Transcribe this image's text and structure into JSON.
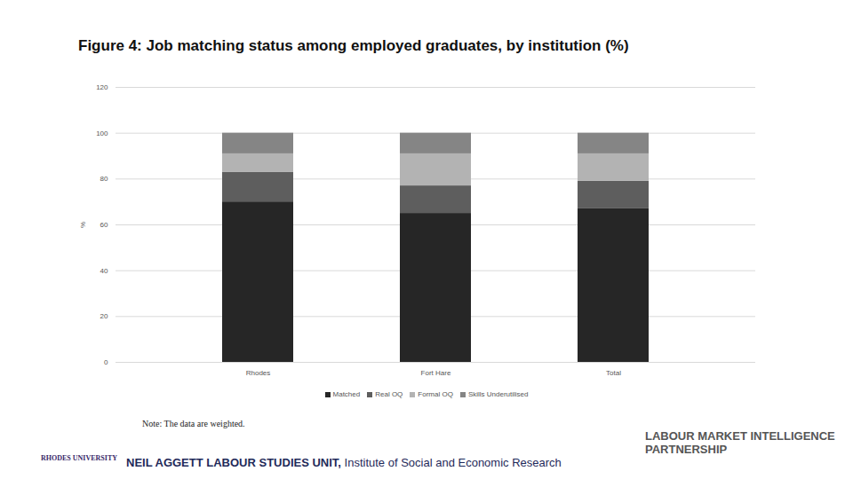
{
  "chart_data": {
    "type": "bar",
    "title": "Figure 4: Job matching status among employed graduates, by institution (%)",
    "categories": [
      "Rhodes",
      "Fort Hare",
      "Total"
    ],
    "series": [
      {
        "name": "Matched",
        "color": "#262626",
        "values": [
          70,
          65,
          67
        ]
      },
      {
        "name": "Real OQ",
        "color": "#5e5e5e",
        "values": [
          13,
          12,
          12
        ]
      },
      {
        "name": "Formal OQ",
        "color": "#b3b3b3",
        "values": [
          8,
          14,
          12
        ]
      },
      {
        "name": "Skills Underutilised",
        "color": "#858585",
        "values": [
          9,
          9,
          9
        ]
      }
    ],
    "stacked": true,
    "y_label": "%",
    "ylim": [
      0,
      120
    ],
    "yticks": [
      0,
      20,
      40,
      60,
      80,
      100,
      120
    ],
    "grid": true,
    "legend": "bottom",
    "annotations": {
      "note": "Note: The data are weighted.",
      "university": "RHODES UNIVERSITY",
      "unit": "NEIL AGGETT LABOUR STUDIES UNIT,",
      "institute": "Institute of Social and Economic Research",
      "partnership": "LABOUR MARKET INTELLIGENCE PARTNERSHIP"
    }
  }
}
